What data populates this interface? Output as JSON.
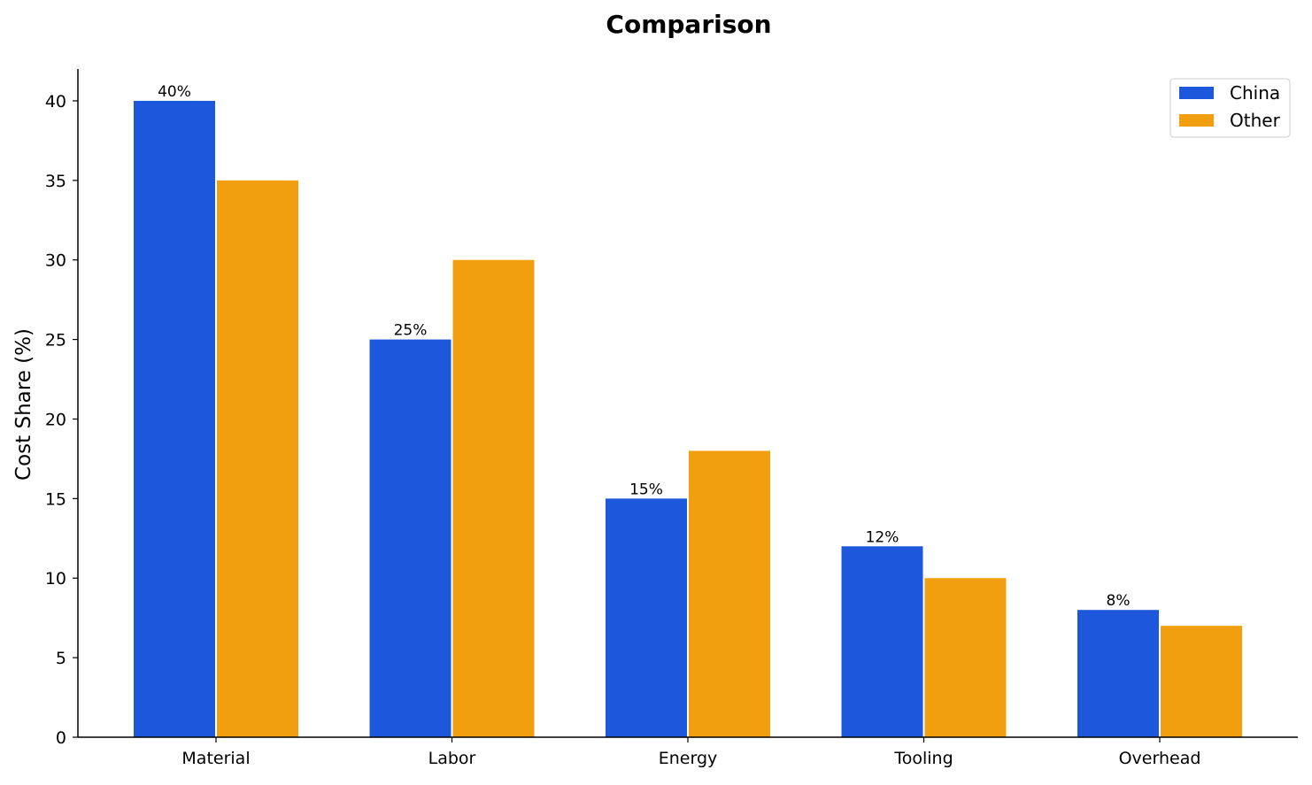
{
  "chart_data": {
    "type": "bar",
    "title": "Comparison",
    "xlabel": "",
    "ylabel": "Cost Share (%)",
    "categories": [
      "Material",
      "Labor",
      "Energy",
      "Tooling",
      "Overhead"
    ],
    "series": [
      {
        "name": "China",
        "color": "#1c57dc",
        "values": [
          40,
          25,
          15,
          12,
          8
        ],
        "data_labels": [
          "40%",
          "25%",
          "15%",
          "12%",
          "8%"
        ]
      },
      {
        "name": "Other",
        "color": "#f29f0f",
        "values": [
          35,
          30,
          18,
          10,
          7
        ]
      }
    ],
    "ylim": [
      0,
      42
    ],
    "yticks": [
      0,
      5,
      10,
      15,
      20,
      25,
      30,
      35,
      40
    ],
    "grid": false,
    "legend_position": "top-right"
  }
}
